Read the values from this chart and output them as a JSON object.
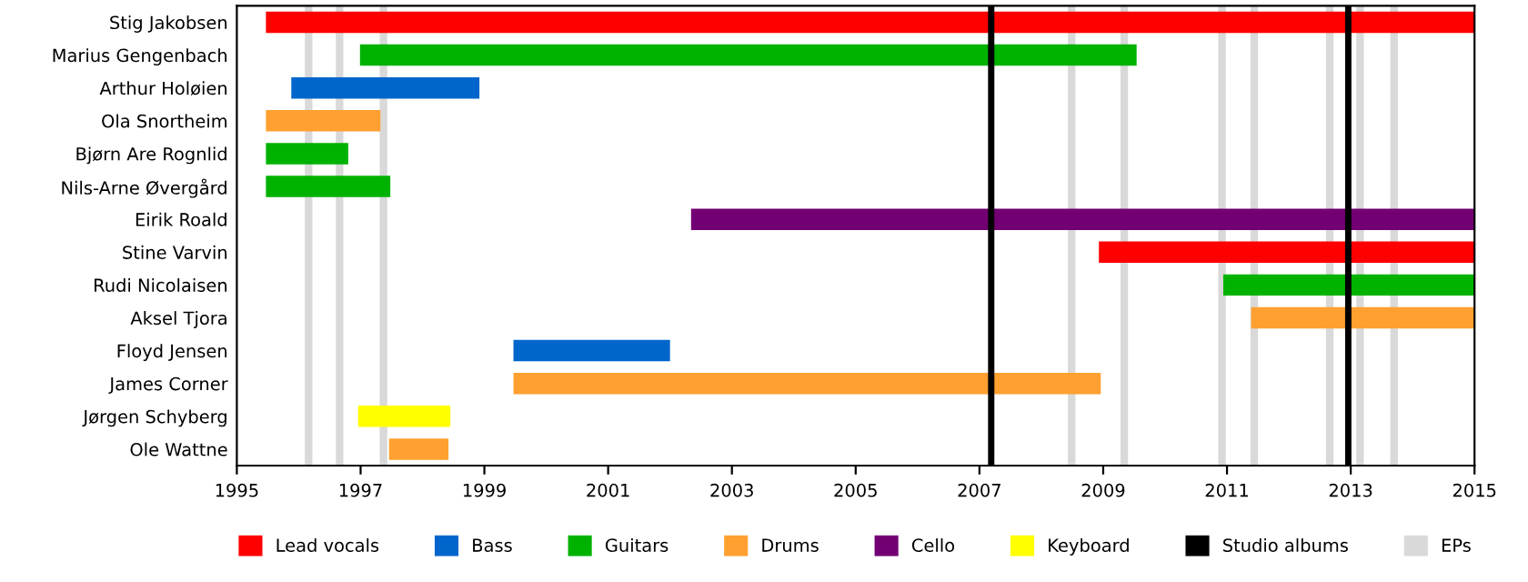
{
  "chart_data": {
    "type": "bar",
    "orientation": "horizontal",
    "categories": [
      "Stig Jakobsen",
      "Marius Gengenbach",
      "Arthur Holøien",
      "Ola Snortheim",
      "Bjørn Are Rognlid",
      "Nils-Arne Øvergård",
      "Eirik Roald",
      "Stine Varvin",
      "Rudi Nicolaisen",
      "Aksel Tjora",
      "Floyd Jensen",
      "James Corner",
      "Jørgen Schyberg",
      "Ole Wattne"
    ],
    "series": [
      {
        "name": "Lead vocals",
        "color": "#ff0000",
        "base": [
          1995.47,
          null,
          null,
          null,
          null,
          null,
          null,
          2008.93,
          null,
          null,
          null,
          null,
          null,
          null
        ],
        "values": [
          19.53,
          null,
          null,
          null,
          null,
          null,
          null,
          6.07,
          null,
          null,
          null,
          null,
          null,
          null
        ]
      },
      {
        "name": "Bass",
        "color": "#0066cc",
        "base": [
          null,
          null,
          1995.88,
          null,
          null,
          null,
          null,
          null,
          null,
          null,
          1999.47,
          null,
          null,
          null
        ],
        "values": [
          null,
          null,
          3.04,
          null,
          null,
          null,
          null,
          null,
          null,
          null,
          2.53,
          null,
          null,
          null
        ]
      },
      {
        "name": "Guitars",
        "color": "#00b200",
        "base": [
          null,
          1996.99,
          null,
          null,
          1995.47,
          1995.47,
          null,
          null,
          2010.94,
          null,
          null,
          null,
          null,
          null
        ],
        "values": [
          null,
          12.55,
          null,
          null,
          1.33,
          2.01,
          null,
          null,
          4.06,
          null,
          null,
          null,
          null,
          null
        ]
      },
      {
        "name": "Drums",
        "color": "#ffa030",
        "base": [
          null,
          null,
          null,
          1995.47,
          null,
          null,
          null,
          null,
          null,
          2011.39,
          null,
          1999.47,
          null,
          1997.46
        ],
        "values": [
          null,
          null,
          null,
          1.85,
          null,
          null,
          null,
          null,
          null,
          3.61,
          null,
          9.49,
          null,
          0.96
        ]
      },
      {
        "name": "Cello",
        "color": "#730073",
        "base": [
          null,
          null,
          null,
          null,
          null,
          null,
          2002.34,
          null,
          null,
          null,
          null,
          null,
          null,
          null
        ],
        "values": [
          null,
          null,
          null,
          null,
          null,
          null,
          12.66,
          null,
          null,
          null,
          null,
          null,
          null,
          null
        ]
      },
      {
        "name": "Keyboard",
        "color": "#ffff00",
        "base": [
          null,
          null,
          null,
          null,
          null,
          null,
          null,
          null,
          null,
          null,
          null,
          null,
          1996.96,
          null
        ],
        "values": [
          null,
          null,
          null,
          null,
          null,
          null,
          null,
          null,
          null,
          null,
          null,
          null,
          1.49,
          null
        ]
      }
    ],
    "ref_lines": [
      {
        "axis": "x",
        "value": 2007.19,
        "label": "Studio albums",
        "color": "#000000"
      },
      {
        "axis": "x",
        "value": 2012.96,
        "color": "#000000"
      },
      {
        "axis": "x",
        "value": 1996.16,
        "label": "EPs",
        "color": "#d9d9d9"
      },
      {
        "axis": "x",
        "value": 1996.66,
        "color": "#d9d9d9"
      },
      {
        "axis": "x",
        "value": 1997.37,
        "color": "#d9d9d9"
      },
      {
        "axis": "x",
        "value": 2008.49,
        "color": "#d9d9d9"
      },
      {
        "axis": "x",
        "value": 2009.34,
        "color": "#d9d9d9"
      },
      {
        "axis": "x",
        "value": 2010.92,
        "color": "#d9d9d9"
      },
      {
        "axis": "x",
        "value": 2011.44,
        "color": "#d9d9d9"
      },
      {
        "axis": "x",
        "value": 2012.66,
        "color": "#d9d9d9"
      },
      {
        "axis": "x",
        "value": 2013.15,
        "color": "#d9d9d9"
      },
      {
        "axis": "x",
        "value": 2013.7,
        "color": "#d9d9d9"
      }
    ],
    "xlim": [
      1995,
      2015
    ],
    "xticks": [
      1995,
      1997,
      1999,
      2001,
      2003,
      2005,
      2007,
      2009,
      2011,
      2013,
      2015
    ],
    "grid": false,
    "legend": "bottom"
  }
}
